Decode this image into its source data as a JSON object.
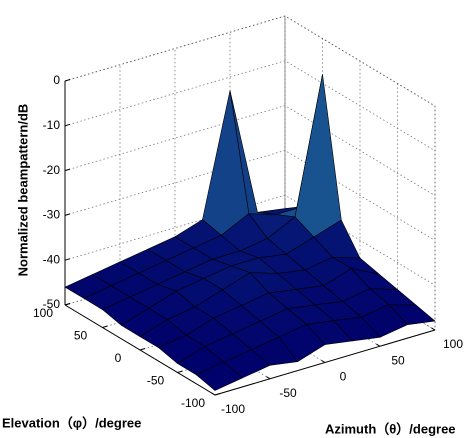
{
  "chart_data": {
    "type": "surface",
    "x_label": "Azimuth（θ）/degree",
    "y_label": "Elevation（φ）/degree",
    "z_label": "Normalized beampattern/dB",
    "x": [
      -100,
      -75,
      -50,
      -25,
      0,
      25,
      50,
      75,
      100
    ],
    "y": [
      -100,
      -75,
      -50,
      -25,
      0,
      25,
      50,
      75,
      100
    ],
    "z": [
      [
        -49,
        -48,
        -47,
        -48,
        -46,
        -47,
        -48,
        -47,
        -48
      ],
      [
        -48,
        -47,
        -46,
        -45,
        -44,
        -45,
        -46,
        -45,
        -47
      ],
      [
        -48,
        -46,
        -45,
        -44,
        -43,
        -44,
        -45,
        -44,
        -46
      ],
      [
        -47,
        -46,
        -44,
        -43,
        -42,
        -43,
        -44,
        -42,
        -45
      ],
      [
        -47,
        -45,
        -44,
        -42,
        -40,
        -42,
        -43,
        -42,
        -44
      ],
      [
        -47,
        -45,
        -43,
        -42,
        -41,
        -41,
        -42,
        -40,
        -38
      ],
      [
        -46,
        -45,
        -44,
        -43,
        -42,
        -42,
        -41,
        -38,
        -8
      ],
      [
        -46,
        -45,
        -44,
        -43,
        -42,
        -41,
        -38,
        -40,
        -40
      ],
      [
        -46,
        -45,
        -44,
        -43,
        -42,
        -40,
        -13,
        -42,
        -43
      ]
    ],
    "xlim": [
      -100,
      100
    ],
    "ylim": [
      -100,
      100
    ],
    "zlim": [
      -50,
      0
    ],
    "xticks": [
      -100,
      -50,
      0,
      50,
      100
    ],
    "yticks": [
      -100,
      -50,
      0,
      50,
      100
    ],
    "zticks": [
      0,
      -10,
      -20,
      -30,
      -40,
      -50
    ],
    "grid": true,
    "colors": [
      "#00006a",
      "#40e0d0"
    ]
  }
}
